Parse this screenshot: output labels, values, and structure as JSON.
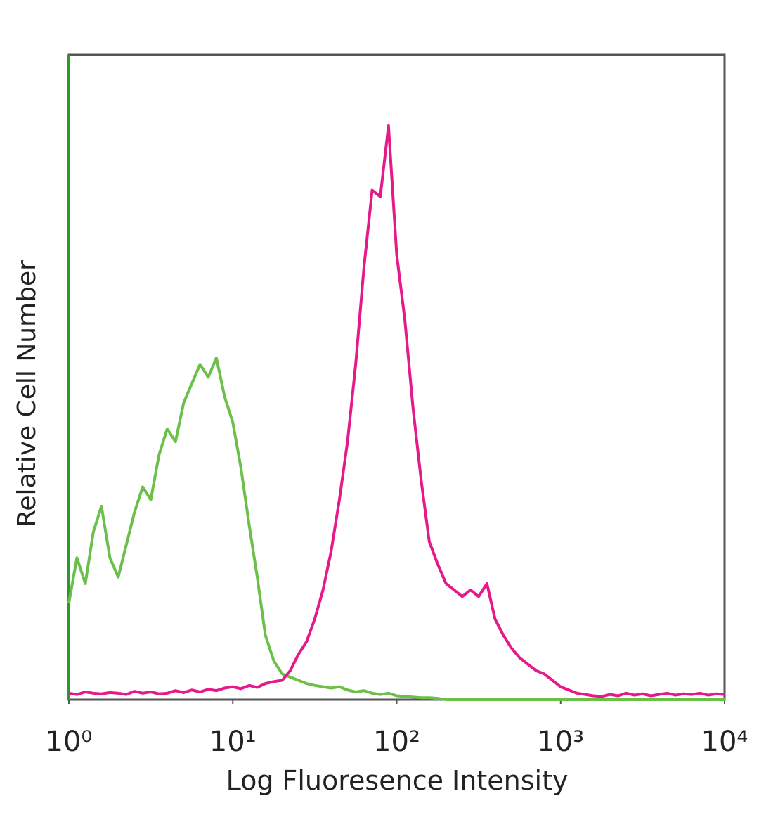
{
  "chart_data": {
    "type": "line",
    "x_label": "Log Fluoresence Intensity",
    "y_label": "Relative Cell Number",
    "xscale": "log",
    "xlim": [
      1,
      10000
    ],
    "xticks": [
      {
        "value": 1,
        "label": "10⁰"
      },
      {
        "value": 10,
        "label": "10¹"
      },
      {
        "value": 100,
        "label": "10²"
      },
      {
        "value": 1000,
        "label": "10³"
      },
      {
        "value": 10000,
        "label": "10⁴"
      }
    ],
    "ylim": [
      0,
      100
    ],
    "x": [
      1,
      1.12,
      1.26,
      1.41,
      1.58,
      1.78,
      2,
      2.24,
      2.51,
      2.82,
      3.16,
      3.55,
      3.98,
      4.47,
      5.01,
      5.62,
      6.31,
      7.08,
      7.94,
      8.91,
      10,
      11.2,
      12.6,
      14.1,
      15.8,
      17.8,
      20,
      22.4,
      25.1,
      28.2,
      31.6,
      35.5,
      39.8,
      44.7,
      50.1,
      56.2,
      63.1,
      70.8,
      79.4,
      89.1,
      100,
      112,
      126,
      141,
      158,
      178,
      200,
      224,
      251,
      282,
      316,
      355,
      398,
      447,
      501,
      562,
      631,
      708,
      794,
      891,
      1000,
      1120,
      1260,
      1410,
      1580,
      1780,
      2000,
      2240,
      2510,
      2820,
      3160,
      3550,
      3980,
      4470,
      5010,
      5620,
      6310,
      7080,
      7940,
      8910,
      10000
    ],
    "series": [
      {
        "color": "#6cc04a",
        "values": [
          15,
          22,
          18,
          26,
          30,
          22,
          19,
          24,
          29,
          33,
          31,
          38,
          42,
          40,
          46,
          49,
          52,
          50,
          53,
          47,
          43,
          36,
          27,
          19,
          10,
          6,
          4,
          3.5,
          3,
          2.5,
          2.2,
          2,
          1.8,
          2,
          1.5,
          1.2,
          1.4,
          1,
          0.8,
          1,
          0.6,
          0.5,
          0.4,
          0.3,
          0.3,
          0.2,
          0,
          0,
          0,
          0,
          0,
          0,
          0,
          0,
          0,
          0,
          0,
          0,
          0,
          0,
          0,
          0,
          0,
          0,
          0,
          0,
          0,
          0,
          0,
          0,
          0,
          0,
          0,
          0,
          0,
          0,
          0,
          0,
          0,
          0,
          0
        ]
      },
      {
        "color": "#e6198a",
        "values": [
          1,
          0.8,
          1.2,
          1,
          0.9,
          1.1,
          1,
          0.8,
          1.3,
          1,
          1.2,
          0.9,
          1,
          1.4,
          1.1,
          1.5,
          1.2,
          1.6,
          1.4,
          1.8,
          2,
          1.7,
          2.2,
          1.9,
          2.5,
          2.8,
          3,
          4.5,
          7,
          9,
          12.5,
          17,
          23,
          31,
          40,
          52,
          67,
          79,
          78,
          89,
          69,
          59,
          45,
          34,
          24.5,
          21,
          18,
          17,
          16,
          17,
          16,
          18,
          12.5,
          10,
          8,
          6.5,
          5.5,
          4.5,
          4,
          3,
          2,
          1.5,
          1,
          0.8,
          0.6,
          0.5,
          0.8,
          0.6,
          1,
          0.7,
          0.9,
          0.6,
          0.8,
          1,
          0.7,
          0.9,
          0.8,
          1,
          0.7,
          0.9,
          0.8
        ]
      }
    ]
  }
}
